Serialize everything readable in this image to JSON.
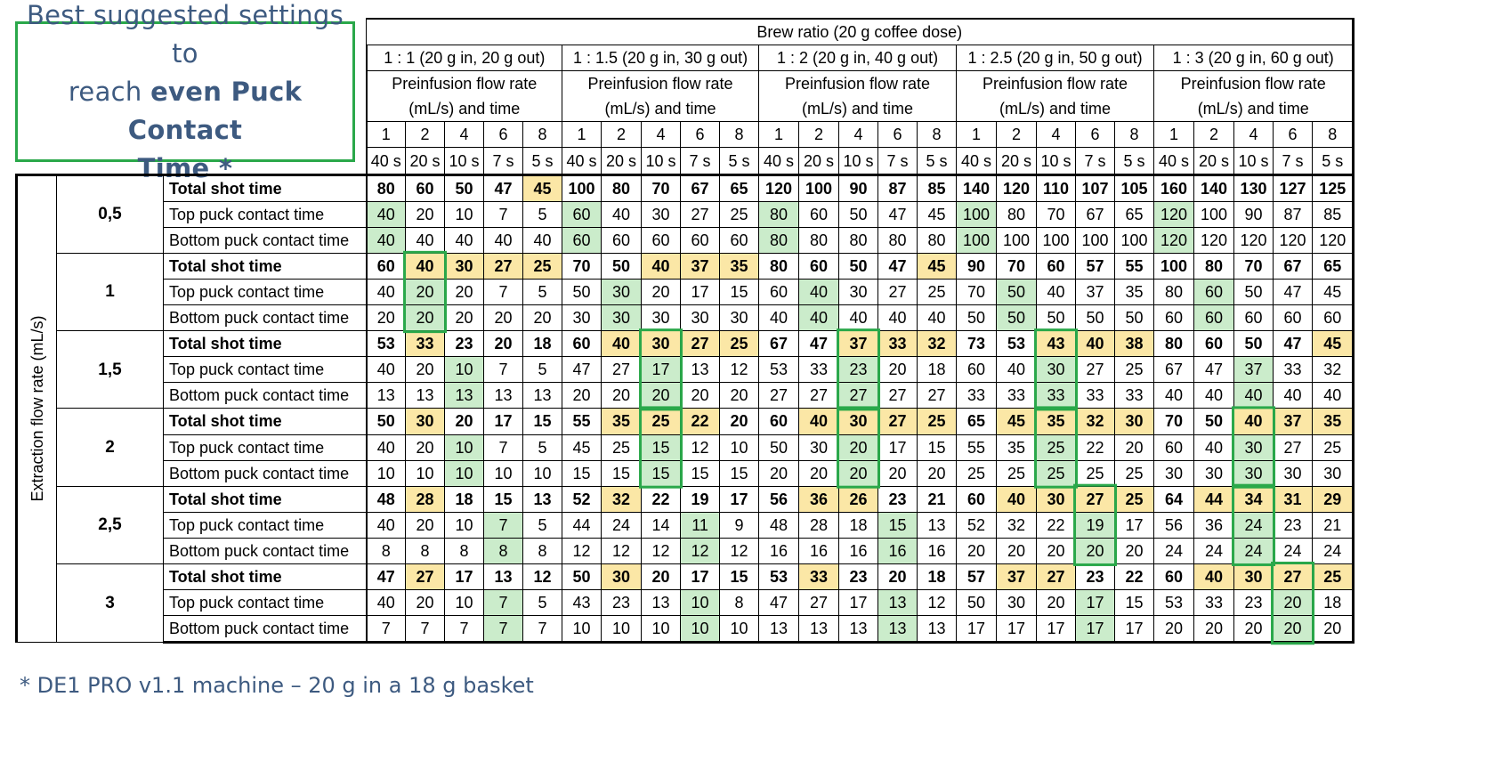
{
  "title": {
    "line1": "Best suggested settings to",
    "line2_pre": "reach ",
    "line2_bold": "even Puck Contact",
    "line3": "Time *"
  },
  "brew_ratio_header": "Brew ratio (20 g coffee dose)",
  "ratio_groups": [
    "1 : 1 (20 g in, 20 g out)",
    "1 : 1.5 (20 g in, 30 g out)",
    "1 : 2 (20 g in, 40 g out)",
    "1 : 2.5 (20 g in, 50 g out)",
    "1 : 3 (20 g in, 60 g out)"
  ],
  "preinfusion_line1": "Preinfusion flow rate",
  "preinfusion_line2": "(mL/s) and time",
  "preinfusion_rates": [
    "1",
    "2",
    "4",
    "6",
    "8"
  ],
  "preinfusion_times": [
    "40 s",
    "20 s",
    "10 s",
    "7 s",
    "5 s"
  ],
  "axis_label": "Extraction flow rate (mL/s)",
  "row_labels": [
    "Total shot time",
    "Top puck contact time",
    "Bottom puck contact time"
  ],
  "flows": [
    {
      "flow": "0,5",
      "rows": [
        [
          80,
          60,
          50,
          47,
          45,
          100,
          80,
          70,
          67,
          65,
          120,
          100,
          90,
          87,
          85,
          140,
          120,
          110,
          107,
          105,
          160,
          140,
          130,
          127,
          125
        ],
        [
          40,
          20,
          10,
          7,
          5,
          60,
          40,
          30,
          27,
          25,
          80,
          60,
          50,
          47,
          45,
          100,
          80,
          70,
          67,
          65,
          120,
          100,
          90,
          87,
          85
        ],
        [
          40,
          40,
          40,
          40,
          40,
          60,
          60,
          60,
          60,
          60,
          80,
          80,
          80,
          80,
          80,
          100,
          100,
          100,
          100,
          100,
          120,
          120,
          120,
          120,
          120
        ]
      ]
    },
    {
      "flow": "1",
      "rows": [
        [
          60,
          40,
          30,
          27,
          25,
          70,
          50,
          40,
          37,
          35,
          80,
          60,
          50,
          47,
          45,
          90,
          70,
          60,
          57,
          55,
          100,
          80,
          70,
          67,
          65
        ],
        [
          40,
          20,
          20,
          7,
          5,
          50,
          30,
          20,
          17,
          15,
          60,
          40,
          30,
          27,
          25,
          70,
          50,
          40,
          37,
          35,
          80,
          60,
          50,
          47,
          45
        ],
        [
          20,
          20,
          20,
          20,
          20,
          30,
          30,
          30,
          30,
          30,
          40,
          40,
          40,
          40,
          40,
          50,
          50,
          50,
          50,
          50,
          60,
          60,
          60,
          60,
          60
        ]
      ]
    },
    {
      "flow": "1,5",
      "rows": [
        [
          53,
          33,
          23,
          20,
          18,
          60,
          40,
          30,
          27,
          25,
          67,
          47,
          37,
          33,
          32,
          73,
          53,
          43,
          40,
          38,
          80,
          60,
          50,
          47,
          45
        ],
        [
          40,
          20,
          10,
          7,
          5,
          47,
          27,
          17,
          13,
          12,
          53,
          33,
          23,
          20,
          18,
          60,
          40,
          30,
          27,
          25,
          67,
          47,
          37,
          33,
          32
        ],
        [
          13,
          13,
          13,
          13,
          13,
          20,
          20,
          20,
          20,
          20,
          27,
          27,
          27,
          27,
          27,
          33,
          33,
          33,
          33,
          33,
          40,
          40,
          40,
          40,
          40
        ]
      ]
    },
    {
      "flow": "2",
      "rows": [
        [
          50,
          30,
          20,
          17,
          15,
          55,
          35,
          25,
          22,
          20,
          60,
          40,
          30,
          27,
          25,
          65,
          45,
          35,
          32,
          30,
          70,
          50,
          40,
          37,
          35
        ],
        [
          40,
          20,
          10,
          7,
          5,
          45,
          25,
          15,
          12,
          10,
          50,
          30,
          20,
          17,
          15,
          55,
          35,
          25,
          22,
          20,
          60,
          40,
          30,
          27,
          25
        ],
        [
          10,
          10,
          10,
          10,
          10,
          15,
          15,
          15,
          15,
          15,
          20,
          20,
          20,
          20,
          20,
          25,
          25,
          25,
          25,
          25,
          30,
          30,
          30,
          30,
          30
        ]
      ]
    },
    {
      "flow": "2,5",
      "rows": [
        [
          48,
          28,
          18,
          15,
          13,
          52,
          32,
          22,
          19,
          17,
          56,
          36,
          26,
          23,
          21,
          60,
          40,
          30,
          27,
          25,
          64,
          44,
          34,
          31,
          29
        ],
        [
          40,
          20,
          10,
          7,
          5,
          44,
          24,
          14,
          11,
          9,
          48,
          28,
          18,
          15,
          13,
          52,
          32,
          22,
          19,
          17,
          56,
          36,
          24,
          23,
          21
        ],
        [
          8,
          8,
          8,
          8,
          8,
          12,
          12,
          12,
          12,
          12,
          16,
          16,
          16,
          16,
          16,
          20,
          20,
          20,
          20,
          20,
          24,
          24,
          24,
          24,
          24
        ]
      ]
    },
    {
      "flow": "3",
      "rows": [
        [
          47,
          27,
          17,
          13,
          12,
          50,
          30,
          20,
          17,
          15,
          53,
          33,
          23,
          20,
          18,
          57,
          37,
          27,
          23,
          22,
          60,
          40,
          30,
          27,
          25
        ],
        [
          40,
          20,
          10,
          7,
          5,
          43,
          23,
          13,
          10,
          8,
          47,
          27,
          17,
          13,
          12,
          50,
          30,
          20,
          17,
          15,
          53,
          33,
          23,
          20,
          18
        ],
        [
          7,
          7,
          7,
          7,
          7,
          10,
          10,
          10,
          10,
          10,
          13,
          13,
          13,
          13,
          13,
          17,
          17,
          17,
          17,
          17,
          20,
          20,
          20,
          20,
          20
        ]
      ]
    }
  ],
  "highlights": {
    "yellow": [
      [
        0,
        0,
        4
      ],
      [
        1,
        0,
        1
      ],
      [
        1,
        0,
        2
      ],
      [
        1,
        0,
        3
      ],
      [
        1,
        0,
        4
      ],
      [
        1,
        0,
        7
      ],
      [
        1,
        0,
        8
      ],
      [
        1,
        0,
        9
      ],
      [
        1,
        0,
        14
      ],
      [
        2,
        0,
        1
      ],
      [
        2,
        0,
        6
      ],
      [
        2,
        0,
        7
      ],
      [
        2,
        0,
        8
      ],
      [
        2,
        0,
        9
      ],
      [
        2,
        0,
        12
      ],
      [
        2,
        0,
        13
      ],
      [
        2,
        0,
        14
      ],
      [
        2,
        0,
        17
      ],
      [
        2,
        0,
        18
      ],
      [
        2,
        0,
        19
      ],
      [
        2,
        0,
        24
      ],
      [
        3,
        0,
        1
      ],
      [
        3,
        0,
        6
      ],
      [
        3,
        0,
        7
      ],
      [
        3,
        0,
        8
      ],
      [
        3,
        0,
        11
      ],
      [
        3,
        0,
        12
      ],
      [
        3,
        0,
        13
      ],
      [
        3,
        0,
        14
      ],
      [
        3,
        0,
        16
      ],
      [
        3,
        0,
        17
      ],
      [
        3,
        0,
        18
      ],
      [
        3,
        0,
        19
      ],
      [
        3,
        0,
        22
      ],
      [
        3,
        0,
        23
      ],
      [
        3,
        0,
        24
      ],
      [
        4,
        0,
        1
      ],
      [
        4,
        0,
        6
      ],
      [
        4,
        0,
        11
      ],
      [
        4,
        0,
        12
      ],
      [
        4,
        0,
        16
      ],
      [
        4,
        0,
        17
      ],
      [
        4,
        0,
        18
      ],
      [
        4,
        0,
        19
      ],
      [
        4,
        0,
        21
      ],
      [
        4,
        0,
        22
      ],
      [
        4,
        0,
        23
      ],
      [
        4,
        0,
        24
      ],
      [
        5,
        0,
        1
      ],
      [
        5,
        0,
        6
      ],
      [
        5,
        0,
        11
      ],
      [
        5,
        0,
        16
      ],
      [
        5,
        0,
        17
      ],
      [
        5,
        0,
        21
      ],
      [
        5,
        0,
        22
      ],
      [
        5,
        0,
        23
      ],
      [
        5,
        0,
        24
      ]
    ],
    "green_cols": [
      [
        0,
        [
          0,
          5,
          10,
          15,
          20
        ]
      ],
      [
        1,
        [
          1,
          6,
          11,
          16,
          21
        ]
      ],
      [
        2,
        [
          2,
          7,
          12,
          17,
          22
        ]
      ],
      [
        3,
        [
          2,
          7,
          12,
          17,
          22
        ]
      ],
      [
        4,
        [
          3,
          8,
          13,
          18,
          22
        ]
      ],
      [
        5,
        [
          3,
          8,
          13,
          18,
          23
        ]
      ]
    ],
    "boxes": [
      [
        1,
        1
      ],
      [
        2,
        7
      ],
      [
        2,
        12
      ],
      [
        2,
        17
      ],
      [
        3,
        7
      ],
      [
        3,
        12
      ],
      [
        3,
        17
      ],
      [
        3,
        22
      ],
      [
        4,
        18
      ],
      [
        4,
        22
      ],
      [
        5,
        23
      ]
    ]
  },
  "footnote": "* DE1 PRO v1.1 machine – 20 g in a 18 g basket",
  "colors": {
    "yellow": "#fbe7a6",
    "green": "#cbeccb",
    "box_green": "#2aa84a",
    "title_blue": "#3d5a80"
  }
}
